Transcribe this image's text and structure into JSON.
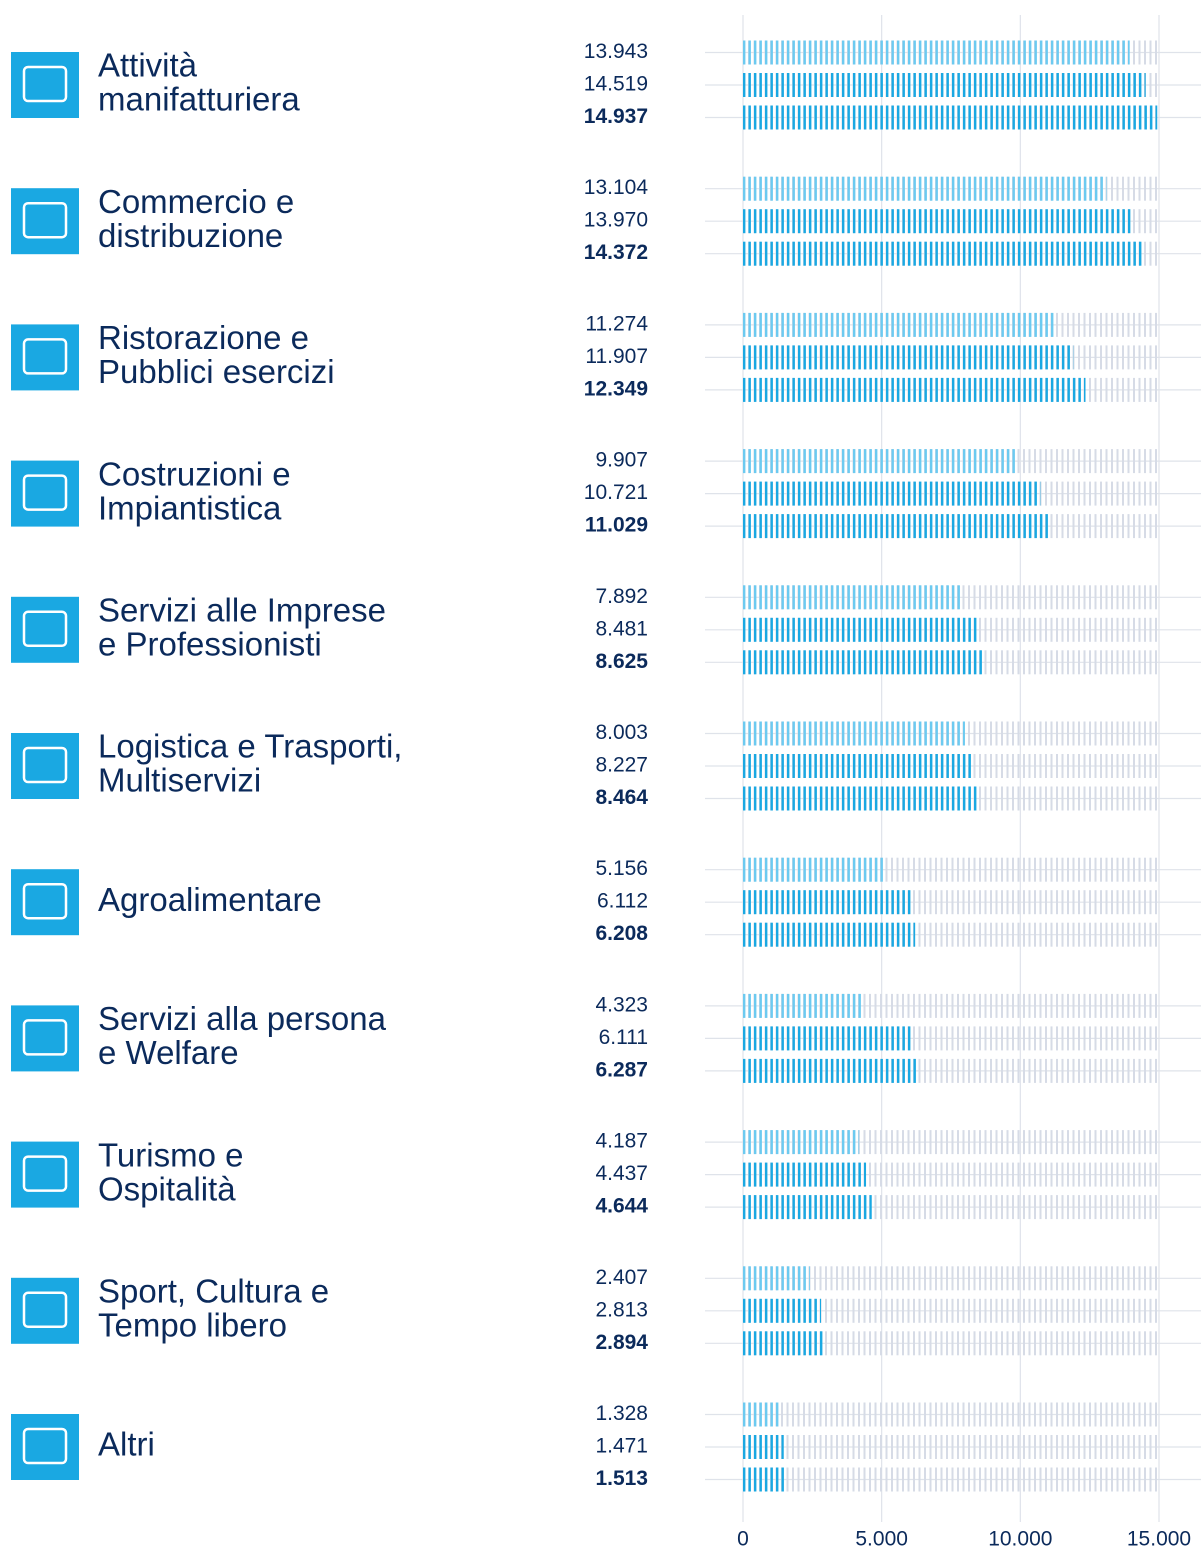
{
  "chart_data": {
    "type": "bar",
    "orientation": "horizontal",
    "categories": [
      [
        "Attività",
        "manifatturiera"
      ],
      [
        "Commercio e",
        "distribuzione"
      ],
      [
        "Ristorazione e",
        "Pubblici esercizi"
      ],
      [
        "Costruzioni e",
        "Impiantistica"
      ],
      [
        "Servizi alle Imprese",
        "e Professionisti"
      ],
      [
        "Logistica e Trasporti,",
        "Multiservizi"
      ],
      [
        "Agroalimentare"
      ],
      [
        "Servizi alla persona",
        "e Welfare"
      ],
      [
        "Turismo e",
        "Ospitalità"
      ],
      [
        "Sport, Cultura e",
        "Tempo libero"
      ],
      [
        "Altri"
      ]
    ],
    "series": [
      {
        "color": "#6ccaf0",
        "values": [
          13943,
          13104,
          11274,
          9907,
          7892,
          8003,
          5156,
          4323,
          4187,
          2407,
          1328
        ],
        "value_labels": [
          "13.943",
          "13.104",
          "11.274",
          "9.907",
          "7.892",
          "8.003",
          "5.156",
          "4.323",
          "4.187",
          "2.407",
          "1.328"
        ]
      },
      {
        "color": "#1aa8e2",
        "values": [
          14519,
          13970,
          11907,
          10721,
          8481,
          8227,
          6112,
          6111,
          4437,
          2813,
          1471
        ],
        "value_labels": [
          "14.519",
          "13.970",
          "11.907",
          "10.721",
          "8.481",
          "8.227",
          "6.112",
          "6.111",
          "4.437",
          "2.813",
          "1.471"
        ]
      },
      {
        "color": "#1aa8e2",
        "bold": true,
        "values": [
          14937,
          14372,
          12349,
          11029,
          8625,
          8464,
          6208,
          6287,
          4644,
          2894,
          1513
        ],
        "value_labels": [
          "14.937",
          "14.372",
          "12.349",
          "11.029",
          "8.625",
          "8.464",
          "6.208",
          "6.287",
          "4.644",
          "2.894",
          "1.513"
        ]
      }
    ],
    "xlim": [
      0,
      15000
    ],
    "xticks": [
      0,
      {
        "value": 5000,
        "label": "5.000"
      },
      {
        "value": 10000,
        "label": "10.000"
      },
      {
        "value": 15000,
        "label": "15.000"
      }
    ],
    "grid": true
  }
}
